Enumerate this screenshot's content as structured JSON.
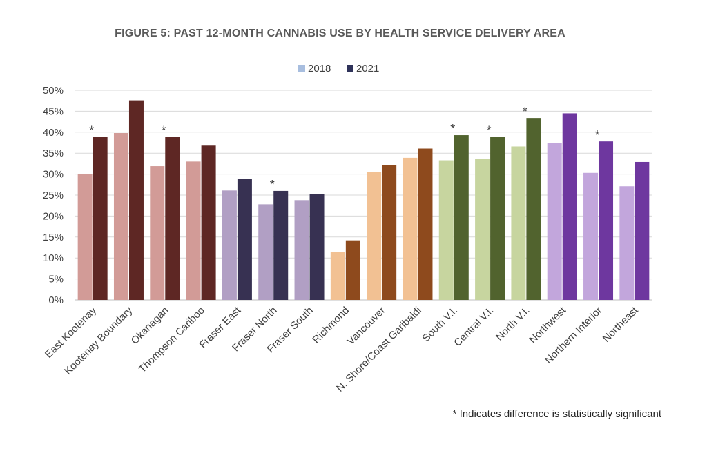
{
  "chart_data": {
    "type": "bar",
    "title": "FIGURE 5: PAST 12-MONTH CANNABIS USE BY HEALTH SERVICE DELIVERY AREA",
    "xlabel": "",
    "ylabel": "",
    "ylim": [
      0,
      50
    ],
    "yticks": [
      "0%",
      "5%",
      "10%",
      "15%",
      "20%",
      "25%",
      "30%",
      "35%",
      "40%",
      "45%",
      "50%"
    ],
    "grid": true,
    "legend_position": "top-center",
    "categories": [
      "East Kootenay",
      "Kootenay Boundary",
      "Okanagan",
      "Thompson Cariboo",
      "Fraser East",
      "Fraser North",
      "Fraser South",
      "Richmond",
      "Vancouver",
      "N. Shore/Coast Garibaldi",
      "South V.I.",
      "Central V.I.",
      "North V.I.",
      "Northwest",
      "Northern Interior",
      "Northeast"
    ],
    "significant": [
      "*",
      "",
      "*",
      "",
      "",
      "*",
      "",
      "",
      "",
      "",
      "*",
      "*",
      "*",
      "",
      "*",
      ""
    ],
    "series": [
      {
        "name": "2018",
        "values": [
          30.1,
          39.8,
          31.9,
          33.0,
          26.1,
          22.8,
          23.8,
          11.4,
          30.5,
          33.9,
          33.3,
          33.6,
          36.6,
          37.4,
          30.3,
          27.1
        ]
      },
      {
        "name": "2021",
        "values": [
          38.9,
          47.6,
          38.9,
          36.8,
          28.9,
          26.0,
          25.2,
          14.2,
          32.2,
          36.1,
          39.3,
          38.9,
          43.4,
          44.5,
          37.8,
          32.9
        ]
      }
    ],
    "legend_colors": {
      "2018": "#a8bedf",
      "2021": "#2e3259"
    },
    "group_colors_2018": [
      "#d29b97",
      "#d29b97",
      "#d29b97",
      "#d29b97",
      "#b19fc4",
      "#b19fc4",
      "#b19fc4",
      "#f2c193",
      "#f2c193",
      "#f2c193",
      "#c7d59f",
      "#c7d59f",
      "#c7d59f",
      "#c2a6dc",
      "#c2a6dc",
      "#c2a6dc"
    ],
    "group_colors_2021": [
      "#5e2724",
      "#5e2724",
      "#5e2724",
      "#5e2724",
      "#373152",
      "#373152",
      "#373152",
      "#8e4a1d",
      "#8e4a1d",
      "#8e4a1d",
      "#51632e",
      "#51632e",
      "#51632e",
      "#6e379f",
      "#6e379f",
      "#6e379f"
    ]
  },
  "footnote": "* Indicates difference is statistically significant"
}
